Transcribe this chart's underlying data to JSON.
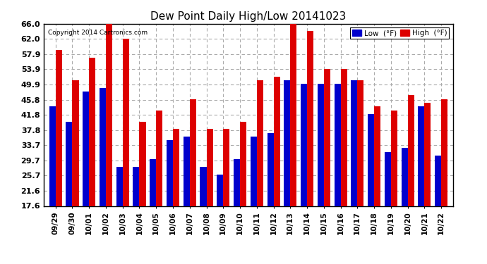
{
  "title": "Dew Point Daily High/Low 20141023",
  "copyright": "Copyright 2014 Cartronics.com",
  "dates": [
    "09/29",
    "09/30",
    "10/01",
    "10/02",
    "10/03",
    "10/04",
    "10/05",
    "10/06",
    "10/07",
    "10/08",
    "10/09",
    "10/10",
    "10/11",
    "10/12",
    "10/13",
    "10/14",
    "10/15",
    "10/16",
    "10/17",
    "10/18",
    "10/19",
    "10/20",
    "10/21",
    "10/22"
  ],
  "low": [
    44.0,
    40.0,
    48.0,
    49.0,
    28.0,
    28.0,
    30.0,
    35.0,
    36.0,
    28.0,
    26.0,
    30.0,
    36.0,
    37.0,
    51.0,
    50.0,
    50.0,
    50.0,
    51.0,
    42.0,
    32.0,
    33.0,
    44.0,
    31.0
  ],
  "high": [
    59.0,
    51.0,
    57.0,
    66.0,
    62.0,
    40.0,
    43.0,
    38.0,
    46.0,
    38.0,
    38.0,
    40.0,
    51.0,
    52.0,
    66.0,
    64.0,
    54.0,
    54.0,
    51.0,
    44.0,
    43.0,
    47.0,
    45.0,
    46.0
  ],
  "ylim": [
    17.6,
    66.0
  ],
  "ymin": 17.6,
  "yticks": [
    17.6,
    21.6,
    25.7,
    29.7,
    33.7,
    37.8,
    41.8,
    45.8,
    49.9,
    53.9,
    57.9,
    62.0,
    66.0
  ],
  "low_color": "#0000cc",
  "high_color": "#dd0000",
  "bg_color": "#ffffff",
  "grid_color": "#aaaaaa",
  "bar_width": 0.38,
  "legend_low": "Low  (°F)",
  "legend_high": "High  (°F)"
}
